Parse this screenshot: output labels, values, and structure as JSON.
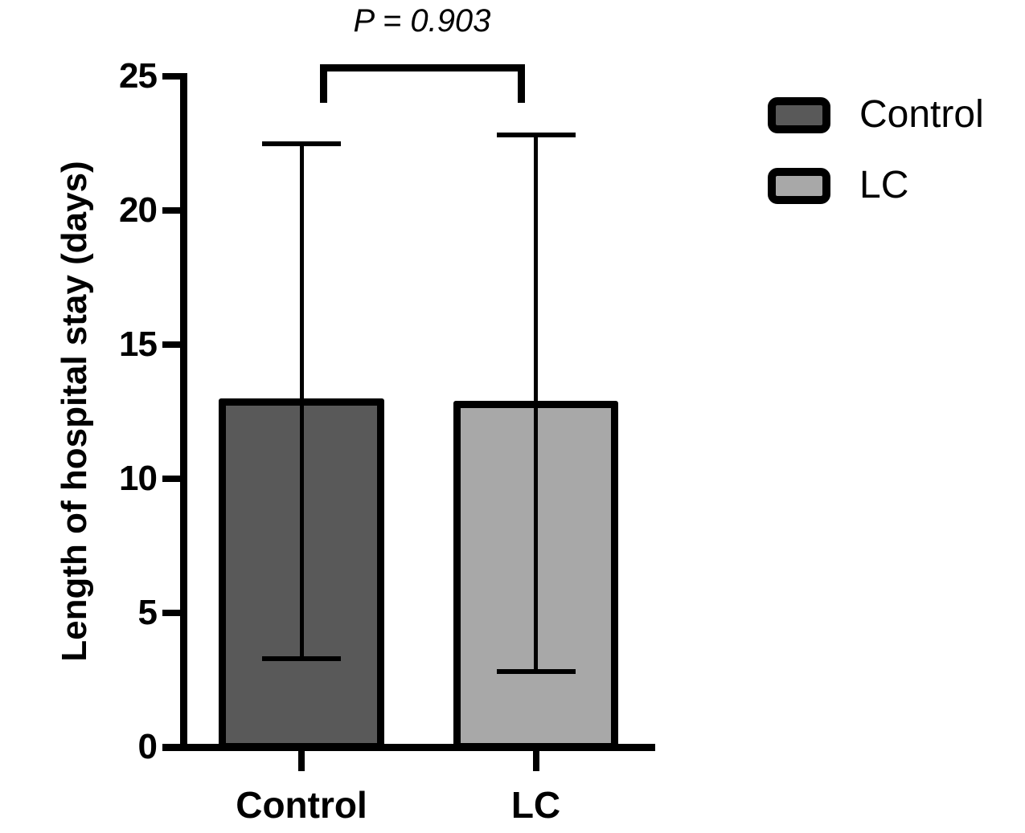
{
  "chart_data": {
    "type": "bar",
    "title": "",
    "ylabel": "Length of hospital stay (days)",
    "xlabel": "",
    "categories": [
      "Control",
      "LC"
    ],
    "series": [
      {
        "name": "Control",
        "mean": 13.0,
        "error_upper": 22.5,
        "error_lower": 3.3,
        "color": "#595959"
      },
      {
        "name": "LC",
        "mean": 12.9,
        "error_upper": 22.8,
        "error_lower": 2.8,
        "color": "#a8a8a8"
      }
    ],
    "ylim": [
      0,
      25
    ],
    "yticks": [
      0,
      5,
      10,
      15,
      20,
      25
    ],
    "grid": false,
    "error_bars": "capped, above and below bar top",
    "annotation": {
      "text": "P = 0.903",
      "between": [
        "Control",
        "LC"
      ]
    },
    "legend": {
      "position": "upper-right",
      "entries": [
        {
          "label": "Control",
          "color": "#595959"
        },
        {
          "label": "LC",
          "color": "#a8a8a8"
        }
      ]
    },
    "colors": {
      "axis": "#000000",
      "background": "#ffffff",
      "text": "#000000"
    }
  }
}
